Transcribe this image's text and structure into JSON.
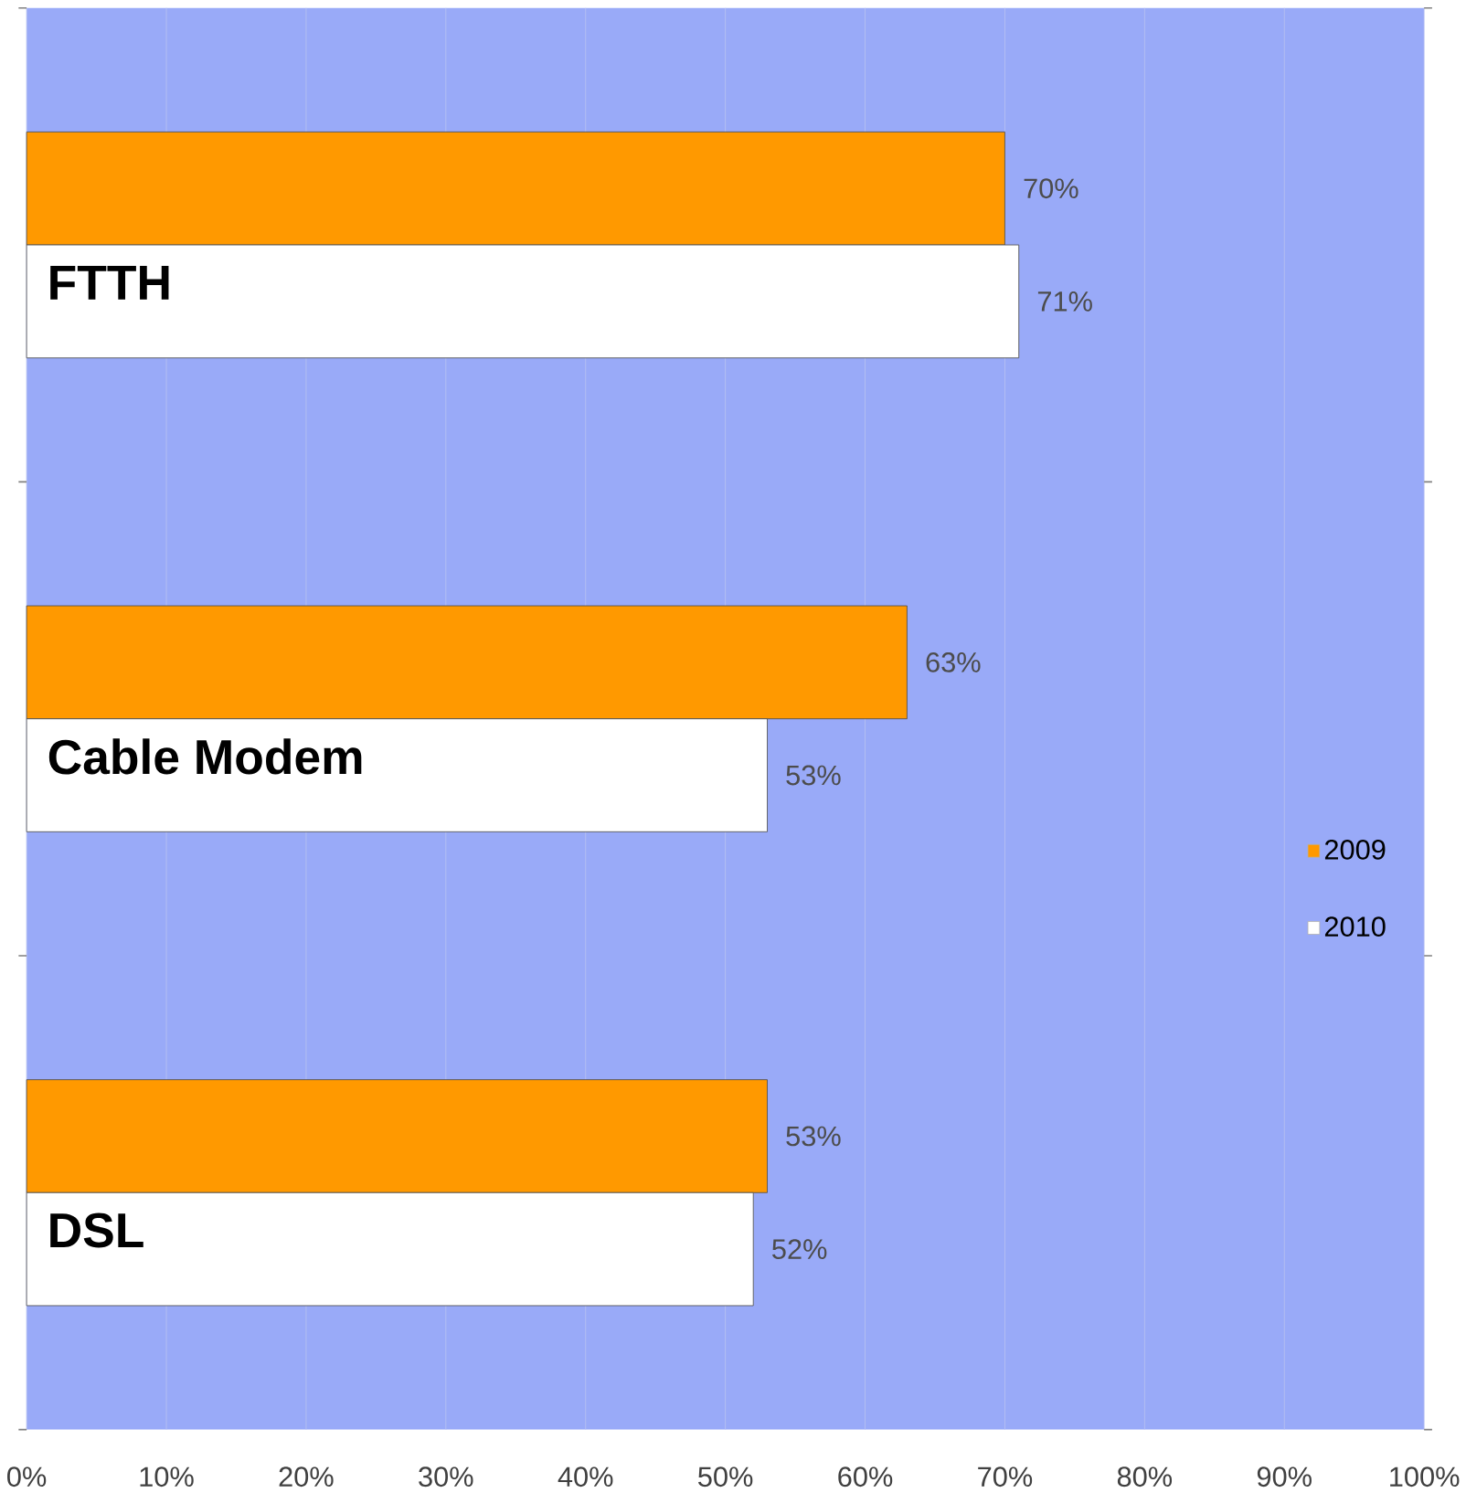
{
  "chart_data": {
    "type": "bar",
    "orientation": "horizontal",
    "categories": [
      "FTTH",
      "Cable Modem",
      "DSL"
    ],
    "series": [
      {
        "name": "2009",
        "color": "#ff9900",
        "values": [
          70,
          63,
          53
        ],
        "value_labels": [
          "70%",
          "63%",
          "53%"
        ]
      },
      {
        "name": "2010",
        "color": "#ffffff",
        "values": [
          71,
          53,
          52
        ],
        "value_labels": [
          "71%",
          "53%",
          "52%"
        ]
      }
    ],
    "xlim": [
      0,
      100
    ],
    "xticks": [
      {
        "value": 0,
        "label": "0%"
      },
      {
        "value": 10,
        "label": "10%"
      },
      {
        "value": 20,
        "label": "20%"
      },
      {
        "value": 30,
        "label": "30%"
      },
      {
        "value": 40,
        "label": "40%"
      },
      {
        "value": 50,
        "label": "50%"
      },
      {
        "value": 60,
        "label": "60%"
      },
      {
        "value": 70,
        "label": "70%"
      },
      {
        "value": 80,
        "label": "80%"
      },
      {
        "value": 90,
        "label": "90%"
      },
      {
        "value": 100,
        "label": "100%"
      }
    ],
    "grid": "x",
    "legend": "right"
  }
}
